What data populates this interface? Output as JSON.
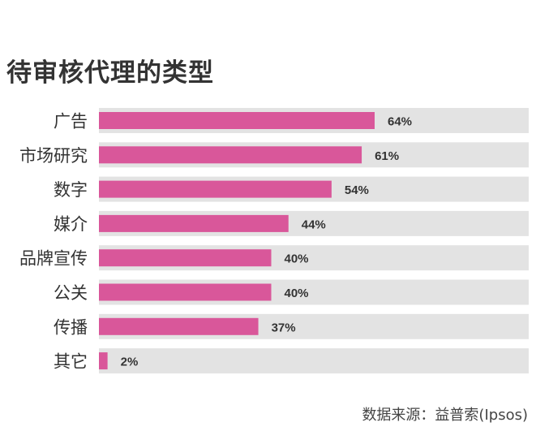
{
  "title": "待审核代理的类型",
  "source": "数据来源：益普索(Ipsos)",
  "colors": {
    "bar": "#d9579a",
    "track": "#e3e3e3",
    "text": "#333333"
  },
  "chart_data": {
    "type": "bar",
    "orientation": "horizontal",
    "categories": [
      "广告",
      "市场研究",
      "数字",
      "媒介",
      "品牌宣传",
      "公关",
      "传播",
      "其它"
    ],
    "values": [
      64,
      61,
      54,
      44,
      40,
      40,
      37,
      2
    ],
    "value_labels": [
      "64%",
      "61%",
      "54%",
      "44%",
      "40%",
      "40%",
      "37%",
      "2%"
    ],
    "xlim": [
      0,
      100
    ],
    "grid": false,
    "legend": "none"
  }
}
